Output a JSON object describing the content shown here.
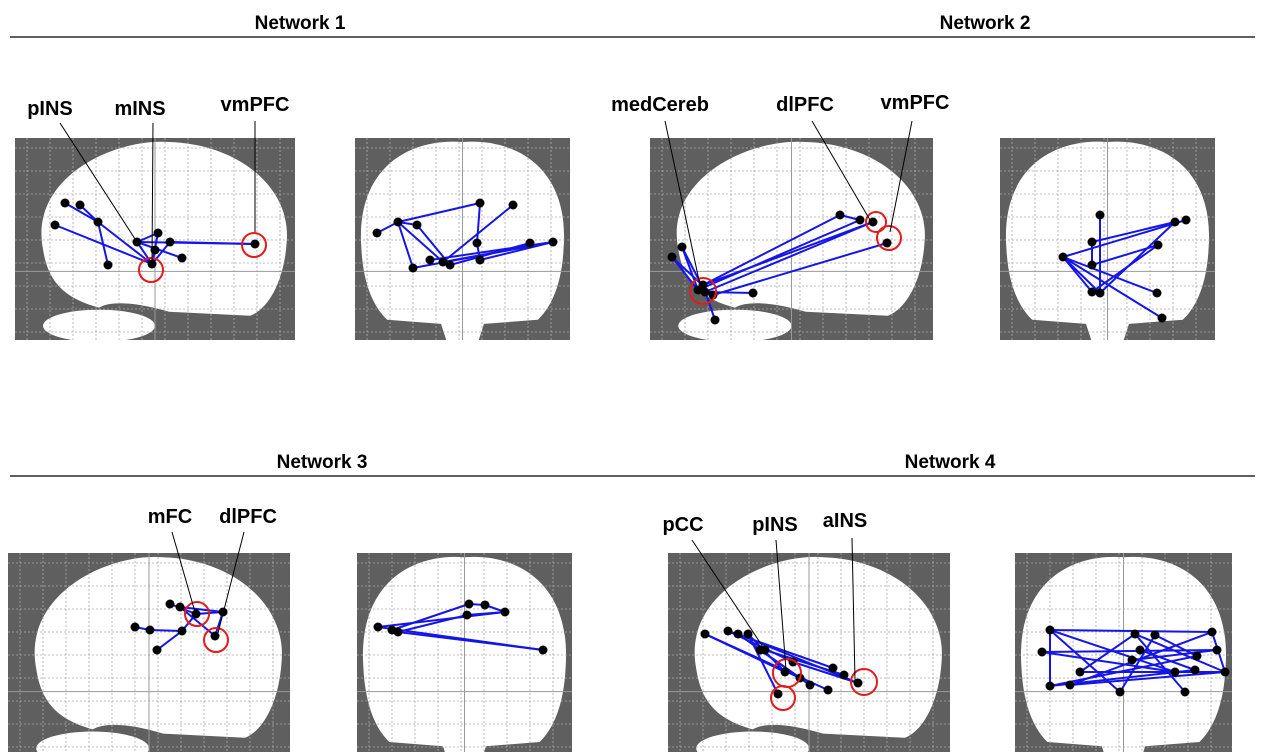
{
  "networks": [
    {
      "title": "Network 1",
      "labels": [
        "pINS",
        "mINS",
        "vmPFC"
      ]
    },
    {
      "title": "Network 2",
      "labels": [
        "medCereb",
        "dlPFC",
        "vmPFC"
      ]
    },
    {
      "title": "Network 3",
      "labels": [
        "mFC",
        "dlPFC"
      ]
    },
    {
      "title": "Network 4",
      "labels": [
        "pCC",
        "pINS",
        "aINS"
      ]
    }
  ]
}
